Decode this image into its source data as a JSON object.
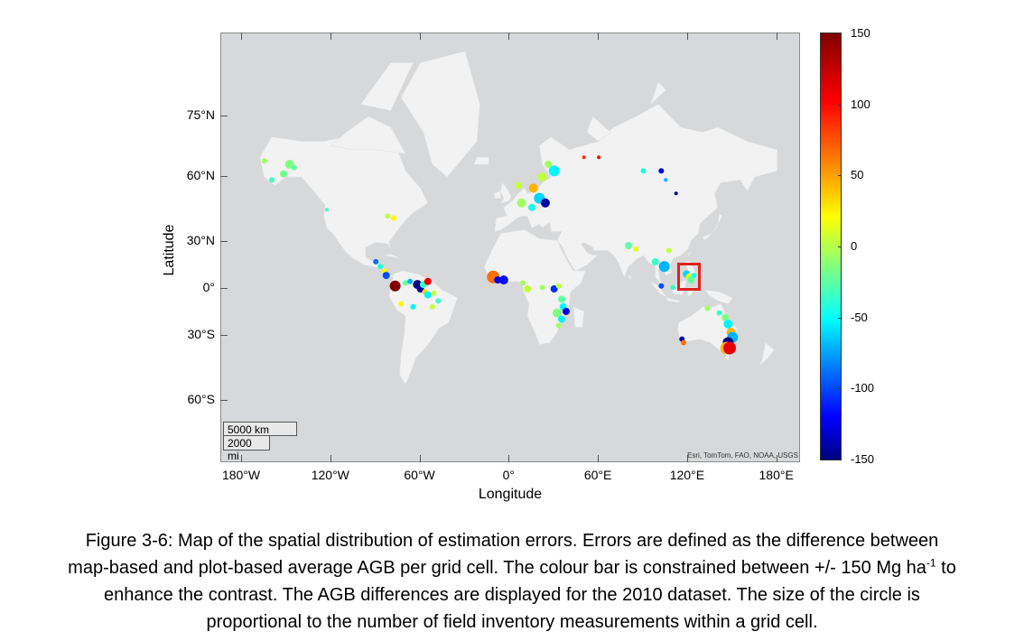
{
  "map": {
    "x_axis_title": "Longitude",
    "y_axis_title": "Latitude",
    "lon_ticks": [
      {
        "label": "180°W",
        "lon": -180
      },
      {
        "label": "120°W",
        "lon": -120
      },
      {
        "label": "60°W",
        "lon": -60
      },
      {
        "label": "0°",
        "lon": 0
      },
      {
        "label": "60°E",
        "lon": 60
      },
      {
        "label": "120°E",
        "lon": 120
      },
      {
        "label": "180°E",
        "lon": 180
      }
    ],
    "lat_ticks": [
      {
        "label": "75°N",
        "lat": 75
      },
      {
        "label": "60°N",
        "lat": 60
      },
      {
        "label": "30°N",
        "lat": 30
      },
      {
        "label": "0°",
        "lat": 0
      },
      {
        "label": "30°S",
        "lat": -30
      },
      {
        "label": "60°S",
        "lat": -60
      }
    ],
    "scale_km": "5000 km",
    "scale_mi": "2000 mi",
    "attribution": "Esri, TomTom, FAO, NOAA, USGS",
    "land_color": "#f2f2f2",
    "ocean_color": "#d7d8d9",
    "highlight_color": "#e02020",
    "highlight_region": {
      "lon_min": 116,
      "lon_max": 127,
      "lat_min": 2,
      "lat_max": 13
    }
  },
  "colorbar": {
    "ticks": [
      "150",
      "100",
      "50",
      "0",
      "-50",
      "-100",
      "-150"
    ],
    "min": -150,
    "max": 150
  },
  "chart_data": {
    "type": "scatter",
    "x_name": "Longitude",
    "y_name": "Latitude",
    "value_range": [
      -150,
      150
    ],
    "points": [
      {
        "lon": -152,
        "lat": 61,
        "v": -5,
        "s": 4
      },
      {
        "lon": -148,
        "lat": 64,
        "v": 0,
        "s": 5
      },
      {
        "lon": -145,
        "lat": 63,
        "v": -10,
        "s": 3
      },
      {
        "lon": -160,
        "lat": 59,
        "v": -20,
        "s": 3
      },
      {
        "lon": -165,
        "lat": 65,
        "v": 10,
        "s": 3
      },
      {
        "lon": -82,
        "lat": 44,
        "v": 20,
        "s": 3
      },
      {
        "lon": -78,
        "lat": 43,
        "v": 40,
        "s": 3
      },
      {
        "lon": -123,
        "lat": 47,
        "v": -20,
        "s": 2
      },
      {
        "lon": -90,
        "lat": 18,
        "v": -80,
        "s": 3
      },
      {
        "lon": -87,
        "lat": 15,
        "v": -30,
        "s": 3
      },
      {
        "lon": -84,
        "lat": 12,
        "v": 40,
        "s": 3
      },
      {
        "lon": -83,
        "lat": 9,
        "v": -90,
        "s": 4
      },
      {
        "lon": -77,
        "lat": 2,
        "v": 150,
        "s": 6
      },
      {
        "lon": -70,
        "lat": 4,
        "v": -10,
        "s": 3
      },
      {
        "lon": -67,
        "lat": 5,
        "v": -60,
        "s": 3
      },
      {
        "lon": -62,
        "lat": 3,
        "v": -150,
        "s": 5
      },
      {
        "lon": -60,
        "lat": 0,
        "v": -140,
        "s": 4
      },
      {
        "lon": -58,
        "lat": 3,
        "v": -20,
        "s": 4
      },
      {
        "lon": -55,
        "lat": 5,
        "v": 120,
        "s": 4
      },
      {
        "lon": -57,
        "lat": -2,
        "v": 50,
        "s": 3
      },
      {
        "lon": -55,
        "lat": -4,
        "v": -40,
        "s": 4
      },
      {
        "lon": -51,
        "lat": -3,
        "v": 20,
        "s": 3
      },
      {
        "lon": -73,
        "lat": -10,
        "v": 40,
        "s": 3
      },
      {
        "lon": -65,
        "lat": -12,
        "v": -40,
        "s": 3
      },
      {
        "lon": -52,
        "lat": -12,
        "v": 20,
        "s": 3
      },
      {
        "lon": -48,
        "lat": -8,
        "v": -20,
        "s": 3
      },
      {
        "lon": -11,
        "lat": 8,
        "v": 80,
        "s": 7
      },
      {
        "lon": -8,
        "lat": 6,
        "v": -120,
        "s": 4
      },
      {
        "lon": -4,
        "lat": 6,
        "v": -110,
        "s": 5
      },
      {
        "lon": 9,
        "lat": 4,
        "v": 10,
        "s": 3
      },
      {
        "lon": 12,
        "lat": 0,
        "v": 20,
        "s": 4
      },
      {
        "lon": 22,
        "lat": 1,
        "v": 10,
        "s": 3
      },
      {
        "lon": 30,
        "lat": 0,
        "v": -100,
        "s": 4
      },
      {
        "lon": 33,
        "lat": 2,
        "v": 20,
        "s": 3
      },
      {
        "lon": 35,
        "lat": -7,
        "v": -10,
        "s": 4
      },
      {
        "lon": 36,
        "lat": -12,
        "v": -40,
        "s": 4
      },
      {
        "lon": 32,
        "lat": -16,
        "v": 0,
        "s": 5
      },
      {
        "lon": 38,
        "lat": -15,
        "v": -120,
        "s": 4
      },
      {
        "lon": 35,
        "lat": -20,
        "v": -40,
        "s": 4
      },
      {
        "lon": 33,
        "lat": -24,
        "v": 10,
        "s": 3
      },
      {
        "lon": 8,
        "lat": 50,
        "v": 10,
        "s": 5
      },
      {
        "lon": 15,
        "lat": 48,
        "v": -30,
        "s": 4
      },
      {
        "lon": 20,
        "lat": 52,
        "v": -50,
        "s": 6
      },
      {
        "lon": 24,
        "lat": 50,
        "v": -140,
        "s": 5
      },
      {
        "lon": 16,
        "lat": 56,
        "v": 60,
        "s": 5
      },
      {
        "lon": 6,
        "lat": 57,
        "v": 20,
        "s": 4
      },
      {
        "lon": 22,
        "lat": 60,
        "v": 20,
        "s": 5
      },
      {
        "lon": 26,
        "lat": 64,
        "v": 10,
        "s": 4
      },
      {
        "lon": 30,
        "lat": 62,
        "v": -40,
        "s": 6
      },
      {
        "lon": 50,
        "lat": 66,
        "v": 100,
        "s": 2
      },
      {
        "lon": 60,
        "lat": 66,
        "v": 110,
        "s": 2
      },
      {
        "lon": 90,
        "lat": 62,
        "v": -30,
        "s": 3
      },
      {
        "lon": 102,
        "lat": 62,
        "v": -120,
        "s": 3
      },
      {
        "lon": 105,
        "lat": 59,
        "v": -60,
        "s": 2
      },
      {
        "lon": 112,
        "lat": 54,
        "v": -140,
        "s": 2
      },
      {
        "lon": 80,
        "lat": 28,
        "v": -10,
        "s": 4
      },
      {
        "lon": 85,
        "lat": 26,
        "v": 30,
        "s": 3
      },
      {
        "lon": 98,
        "lat": 18,
        "v": -20,
        "s": 4
      },
      {
        "lon": 104,
        "lat": 15,
        "v": -60,
        "s": 6
      },
      {
        "lon": 107,
        "lat": 25,
        "v": 20,
        "s": 3
      },
      {
        "lon": 102,
        "lat": 2,
        "v": -90,
        "s": 3
      },
      {
        "lon": 110,
        "lat": 1,
        "v": -20,
        "s": 3
      },
      {
        "lon": 119,
        "lat": 10,
        "v": -50,
        "s": 4
      },
      {
        "lon": 121,
        "lat": 8,
        "v": 30,
        "s": 4
      },
      {
        "lon": 122,
        "lat": 6,
        "v": -10,
        "s": 4
      },
      {
        "lon": 124,
        "lat": 9,
        "v": -30,
        "s": 3
      },
      {
        "lon": 133,
        "lat": -13,
        "v": 10,
        "s": 3
      },
      {
        "lon": 141,
        "lat": -16,
        "v": -20,
        "s": 3
      },
      {
        "lon": 145,
        "lat": -19,
        "v": 0,
        "s": 4
      },
      {
        "lon": 147,
        "lat": -23,
        "v": -40,
        "s": 5
      },
      {
        "lon": 149,
        "lat": -28,
        "v": 60,
        "s": 5
      },
      {
        "lon": 150,
        "lat": -31,
        "v": -60,
        "s": 6
      },
      {
        "lon": 147,
        "lat": -34,
        "v": -150,
        "s": 6
      },
      {
        "lon": 146,
        "lat": -37,
        "v": 60,
        "s": 7
      },
      {
        "lon": 148,
        "lat": -37,
        "v": 120,
        "s": 7
      },
      {
        "lon": 116,
        "lat": -32,
        "v": -140,
        "s": 3
      },
      {
        "lon": 117,
        "lat": -34,
        "v": 80,
        "s": 3
      }
    ]
  },
  "caption": {
    "line1": "Figure 3-6: Map of the spatial distribution of estimation errors. Errors are defined as the difference between",
    "line2_pre": "map-based and plot-based average AGB per grid cell. The colour bar is constrained between +/- 150 Mg ha",
    "line2_sup": "-1",
    "line2_post": " to",
    "line3": "enhance the contrast. The AGB differences are displayed for the 2010 dataset. The size of the circle is",
    "line4": "proportional to the number of field inventory measurements within a grid cell."
  }
}
